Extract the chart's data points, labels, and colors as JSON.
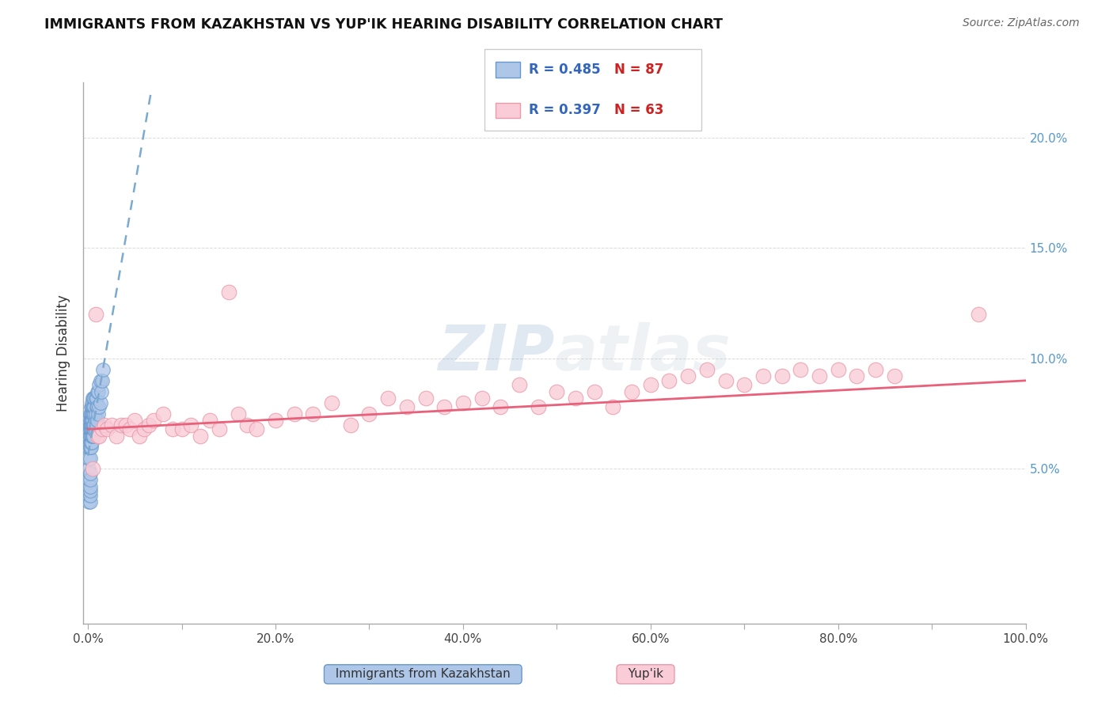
{
  "title": "IMMIGRANTS FROM KAZAKHSTAN VS YUP'IK HEARING DISABILITY CORRELATION CHART",
  "source": "Source: ZipAtlas.com",
  "ylabel": "Hearing Disability",
  "watermark": "ZIPatlas",
  "xlim": [
    -0.005,
    1.0
  ],
  "ylim": [
    -0.02,
    0.225
  ],
  "xticks": [
    0.0,
    0.1,
    0.2,
    0.3,
    0.4,
    0.5,
    0.6,
    0.7,
    0.8,
    0.9,
    1.0
  ],
  "xtick_labels": [
    "0.0%",
    "",
    "20.0%",
    "",
    "40.0%",
    "",
    "60.0%",
    "",
    "80.0%",
    "",
    "100.0%"
  ],
  "yticks_right": [
    0.05,
    0.1,
    0.15,
    0.2
  ],
  "ytick_labels_right": [
    "5.0%",
    "10.0%",
    "15.0%",
    "20.0%"
  ],
  "series1_color": "#aec6e8",
  "series1_edge": "#6699cc",
  "series1_label": "Immigrants from Kazakhstan",
  "series1_trend_color": "#7aaad0",
  "series2_color": "#f9ccd8",
  "series2_edge": "#e89aaa",
  "series2_label": "Yup'ik",
  "series2_trend_color": "#e8607a",
  "background_color": "#ffffff",
  "grid_color": "#cccccc",
  "title_color": "#111111",
  "source_color": "#666666",
  "series1_x": [
    0.001,
    0.001,
    0.001,
    0.001,
    0.001,
    0.001,
    0.001,
    0.001,
    0.001,
    0.002,
    0.002,
    0.002,
    0.002,
    0.002,
    0.002,
    0.002,
    0.002,
    0.002,
    0.002,
    0.002,
    0.002,
    0.003,
    0.003,
    0.003,
    0.003,
    0.003,
    0.003,
    0.003,
    0.003,
    0.003,
    0.003,
    0.004,
    0.004,
    0.004,
    0.004,
    0.004,
    0.004,
    0.004,
    0.004,
    0.005,
    0.005,
    0.005,
    0.005,
    0.005,
    0.005,
    0.005,
    0.006,
    0.006,
    0.006,
    0.006,
    0.006,
    0.006,
    0.007,
    0.007,
    0.007,
    0.007,
    0.007,
    0.008,
    0.008,
    0.008,
    0.008,
    0.009,
    0.009,
    0.009,
    0.01,
    0.01,
    0.01,
    0.011,
    0.011,
    0.012,
    0.012,
    0.013,
    0.013,
    0.014,
    0.015,
    0.016,
    0.001,
    0.001,
    0.001,
    0.001,
    0.001,
    0.002,
    0.002,
    0.002,
    0.002,
    0.002,
    0.002
  ],
  "series1_y": [
    0.05,
    0.055,
    0.06,
    0.06,
    0.065,
    0.065,
    0.068,
    0.07,
    0.072,
    0.055,
    0.06,
    0.06,
    0.062,
    0.065,
    0.065,
    0.068,
    0.068,
    0.07,
    0.07,
    0.072,
    0.075,
    0.06,
    0.062,
    0.065,
    0.068,
    0.07,
    0.07,
    0.072,
    0.072,
    0.075,
    0.078,
    0.062,
    0.065,
    0.068,
    0.07,
    0.072,
    0.075,
    0.078,
    0.08,
    0.065,
    0.068,
    0.07,
    0.072,
    0.075,
    0.078,
    0.082,
    0.065,
    0.068,
    0.07,
    0.075,
    0.078,
    0.082,
    0.068,
    0.07,
    0.075,
    0.078,
    0.082,
    0.068,
    0.072,
    0.075,
    0.082,
    0.07,
    0.078,
    0.082,
    0.072,
    0.078,
    0.085,
    0.075,
    0.085,
    0.078,
    0.088,
    0.08,
    0.09,
    0.085,
    0.09,
    0.095,
    0.035,
    0.038,
    0.04,
    0.042,
    0.045,
    0.035,
    0.038,
    0.04,
    0.042,
    0.045,
    0.048
  ],
  "series2_x": [
    0.005,
    0.008,
    0.01,
    0.012,
    0.015,
    0.018,
    0.02,
    0.025,
    0.03,
    0.035,
    0.04,
    0.045,
    0.05,
    0.055,
    0.06,
    0.065,
    0.07,
    0.08,
    0.09,
    0.1,
    0.11,
    0.12,
    0.13,
    0.14,
    0.15,
    0.16,
    0.17,
    0.18,
    0.2,
    0.22,
    0.24,
    0.26,
    0.28,
    0.3,
    0.32,
    0.34,
    0.36,
    0.38,
    0.4,
    0.42,
    0.44,
    0.46,
    0.48,
    0.5,
    0.52,
    0.54,
    0.56,
    0.58,
    0.6,
    0.62,
    0.64,
    0.66,
    0.68,
    0.7,
    0.72,
    0.74,
    0.76,
    0.78,
    0.8,
    0.82,
    0.84,
    0.86,
    0.95
  ],
  "series2_y": [
    0.05,
    0.12,
    0.065,
    0.065,
    0.068,
    0.07,
    0.068,
    0.07,
    0.065,
    0.07,
    0.07,
    0.068,
    0.072,
    0.065,
    0.068,
    0.07,
    0.072,
    0.075,
    0.068,
    0.068,
    0.07,
    0.065,
    0.072,
    0.068,
    0.13,
    0.075,
    0.07,
    0.068,
    0.072,
    0.075,
    0.075,
    0.08,
    0.07,
    0.075,
    0.082,
    0.078,
    0.082,
    0.078,
    0.08,
    0.082,
    0.078,
    0.088,
    0.078,
    0.085,
    0.082,
    0.085,
    0.078,
    0.085,
    0.088,
    0.09,
    0.092,
    0.095,
    0.09,
    0.088,
    0.092,
    0.092,
    0.095,
    0.092,
    0.095,
    0.092,
    0.095,
    0.092,
    0.12
  ],
  "legend_box_color1": "#aec6e8",
  "legend_box_edge1": "#6699cc",
  "legend_box_color2": "#f9ccd8",
  "legend_box_edge2": "#e89aaa",
  "legend_R1": "R = 0.485",
  "legend_N1": "N = 87",
  "legend_R2": "R = 0.397",
  "legend_N2": "N = 63"
}
